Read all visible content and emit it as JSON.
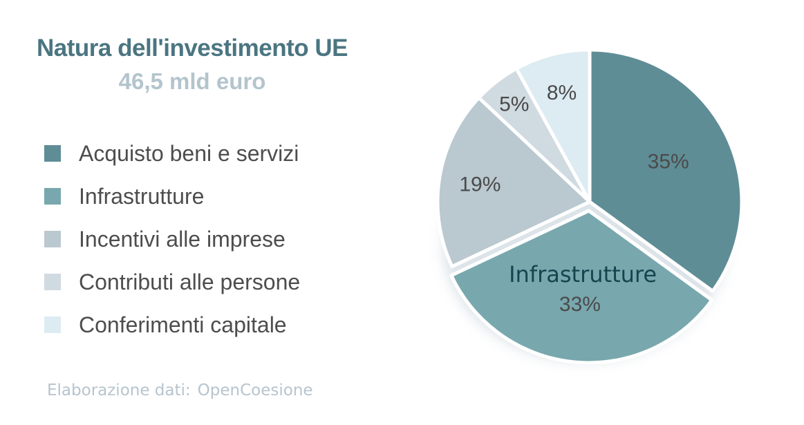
{
  "header": {
    "title": "Natura dell'investimento UE",
    "subtitle": "46,5 mld euro",
    "title_color": "#4a7581",
    "subtitle_color": "#b4c4cd"
  },
  "footer": {
    "prefix": "Elaborazione dati:",
    "source": "OpenCoesione",
    "color": "#b7c4ce"
  },
  "chart_data": {
    "type": "pie",
    "title": "Natura dell'investimento UE",
    "total_label": "46,5 mld euro",
    "unit": "percent",
    "start_angle_deg": 0,
    "direction": "clockwise",
    "legend_position": "left",
    "slices": [
      {
        "label": "Acquisto beni e servizi",
        "value": 35,
        "pct_label": "35%",
        "color": "#5f8d96",
        "label_r": 0.58,
        "exploded": false,
        "name_inside": false
      },
      {
        "label": "Infrastrutture",
        "value": 33,
        "pct_label": "33%",
        "color": "#78a8ae",
        "label_r": 0.62,
        "exploded": true,
        "name_inside": true,
        "name_label_r": 0.42
      },
      {
        "label": "Incentivi alle imprese",
        "value": 19,
        "pct_label": "19%",
        "color": "#bac8d0",
        "label_r": 0.73,
        "exploded": false,
        "name_inside": false
      },
      {
        "label": "Contributi alle persone",
        "value": 5,
        "pct_label": "5%",
        "color": "#d0dae1",
        "label_r": 0.81,
        "exploded": false,
        "name_inside": false
      },
      {
        "label": "Conferimenti capitale",
        "value": 8,
        "pct_label": "8%",
        "color": "#ddebf2",
        "label_r": 0.74,
        "exploded": false,
        "name_inside": false
      }
    ],
    "label_color": "#4a4a4a",
    "inner_name_color": "#16444f",
    "legend_text_color": "#4d4d4d",
    "shadow_color": "#c3cfd8",
    "slice_border_color": "#ffffff"
  }
}
